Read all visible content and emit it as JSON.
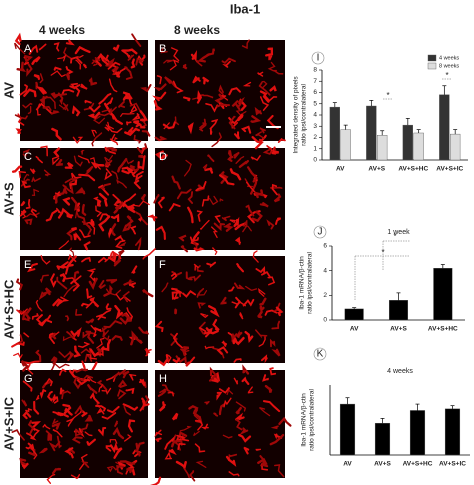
{
  "figure": {
    "title": "Iba-1",
    "columns": [
      "4 weeks",
      "8 weeks"
    ],
    "rows": [
      "AV",
      "AV+S",
      "AV+S+HC",
      "AV+S+IC"
    ],
    "panels": [
      "A",
      "B",
      "C",
      "D",
      "E",
      "F",
      "G",
      "H"
    ]
  },
  "chart_data": [
    {
      "type": "bar",
      "panel": "I",
      "ylabel": [
        "Integrated density of pixels",
        "ratio ipsi/contralateral"
      ],
      "categories": [
        "AV",
        "AV+S",
        "AV+S+HC",
        "AV+S+IC"
      ],
      "series": [
        {
          "name": "4 weeks",
          "color": "#333333",
          "values": [
            4.7,
            4.8,
            3.1,
            5.8
          ],
          "errors": [
            0.4,
            0.5,
            0.6,
            0.8
          ]
        },
        {
          "name": "8 weeks",
          "color": "#dddddd",
          "values": [
            2.7,
            2.2,
            2.4,
            2.3
          ],
          "errors": [
            0.4,
            0.4,
            0.3,
            0.4
          ]
        }
      ],
      "ylim": [
        0,
        8
      ],
      "yticks": [
        0,
        1,
        2,
        3,
        4,
        5,
        6,
        7,
        8
      ],
      "legend": "top-right",
      "annotations": [
        "*",
        "*"
      ]
    },
    {
      "type": "bar",
      "panel": "J",
      "title": "1 week",
      "ylabel": [
        "Iba-1 mRNA/β-ctin",
        "ratio ipsi/contralateral"
      ],
      "categories": [
        "AV",
        "AV+S",
        "AV+S+HC"
      ],
      "values": [
        0.9,
        1.6,
        4.2
      ],
      "errors": [
        0.1,
        0.6,
        0.3
      ],
      "color": "#000000",
      "ylim": [
        0,
        6
      ],
      "yticks": [
        0,
        2,
        4,
        6
      ],
      "annotations": [
        "*",
        "*"
      ]
    },
    {
      "type": "bar",
      "panel": "K",
      "title": "4 weeks",
      "ylabel": [
        "Iba-1 mRNA/β-ctin",
        "ratio ipsi/contralateral"
      ],
      "categories": [
        "AV",
        "AV+S",
        "AV+S+HC",
        "AV+S+IC"
      ],
      "values": [
        1.6,
        1.0,
        1.4,
        1.45
      ],
      "errors": [
        0.2,
        0.15,
        0.2,
        0.1
      ],
      "color": "#000000",
      "ylim": [
        0,
        2.2
      ]
    }
  ]
}
